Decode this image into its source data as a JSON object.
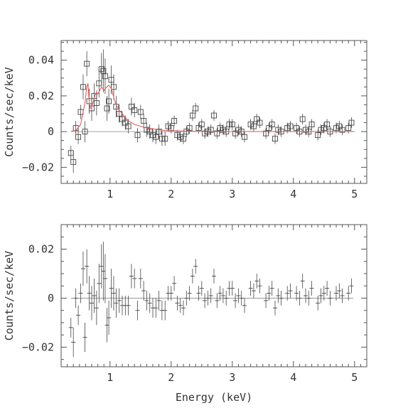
{
  "chart_data": [
    {
      "type": "scatter",
      "panel": "spectrum",
      "xlabel": "",
      "ylabel": "Counts/sec/keV",
      "xlim": [
        0.2,
        5.2
      ],
      "ylim": [
        -0.029,
        0.051
      ],
      "x_ticks": [
        1,
        2,
        3,
        4,
        5
      ],
      "y_ticks": [
        -0.02,
        0,
        0.02,
        0.04
      ],
      "y_tick_labels": [
        "−0.02",
        "0",
        "0.02",
        "0.04"
      ],
      "grid": false,
      "legend": "none",
      "colors": {
        "frame": "#555555",
        "data": "#444444",
        "model": "#e06060",
        "zero_line": "#888888"
      },
      "series": [
        {
          "marker": "open-square",
          "x": [
            0.36,
            0.4,
            0.44,
            0.48,
            0.52,
            0.56,
            0.59,
            0.62,
            0.66,
            0.7,
            0.74,
            0.78,
            0.82,
            0.86,
            0.89,
            0.92,
            0.95,
            0.98,
            1.02,
            1.06,
            1.1,
            1.15,
            1.2,
            1.25,
            1.3,
            1.35,
            1.4,
            1.45,
            1.5,
            1.55,
            1.6,
            1.65,
            1.7,
            1.75,
            1.8,
            1.85,
            1.9,
            1.95,
            2.0,
            2.05,
            2.1,
            2.15,
            2.2,
            2.25,
            2.3,
            2.35,
            2.4,
            2.45,
            2.5,
            2.55,
            2.6,
            2.65,
            2.7,
            2.75,
            2.8,
            2.85,
            2.9,
            2.95,
            3.0,
            3.05,
            3.1,
            3.15,
            3.2,
            3.3,
            3.35,
            3.4,
            3.45,
            3.55,
            3.6,
            3.65,
            3.7,
            3.75,
            3.8,
            3.9,
            3.95,
            4.05,
            4.1,
            4.15,
            4.2,
            4.25,
            4.3,
            4.4,
            4.45,
            4.5,
            4.55,
            4.6,
            4.7,
            4.75,
            4.8,
            4.9,
            4.95
          ],
          "y": [
            -0.012,
            -0.017,
            0.002,
            -0.003,
            0.011,
            0.025,
            0.0,
            0.038,
            0.017,
            0.013,
            0.02,
            0.016,
            0.027,
            0.035,
            0.034,
            0.031,
            0.013,
            0.017,
            0.029,
            0.025,
            0.014,
            0.01,
            0.007,
            0.005,
            0.003,
            0.014,
            0.012,
            -0.002,
            0.011,
            0.006,
            0.001,
            0.0,
            -0.002,
            -0.003,
            0.0,
            -0.004,
            -0.004,
            0.003,
            0.002,
            0.006,
            -0.002,
            -0.003,
            -0.004,
            0.0,
            0.002,
            0.009,
            0.013,
            0.002,
            0.004,
            -0.001,
            0.0,
            0.001,
            0.009,
            -0.001,
            0.002,
            0.001,
            0.0,
            0.004,
            0.004,
            -0.001,
            0.001,
            0.0,
            -0.003,
            0.004,
            0.003,
            0.007,
            0.005,
            -0.001,
            0.002,
            0.004,
            -0.004,
            0.001,
            0.0,
            0.002,
            0.003,
            0.002,
            0.0,
            0.007,
            0.001,
            0.0,
            0.004,
            -0.002,
            0.001,
            0.002,
            0.004,
            0.0,
            0.002,
            0.003,
            0.001,
            0.002,
            0.005
          ],
          "yerr": [
            0.004,
            0.006,
            0.004,
            0.004,
            0.004,
            0.007,
            0.006,
            0.007,
            0.007,
            0.007,
            0.007,
            0.007,
            0.008,
            0.009,
            0.012,
            0.01,
            0.007,
            0.007,
            0.008,
            0.007,
            0.006,
            0.005,
            0.004,
            0.004,
            0.004,
            0.005,
            0.004,
            0.004,
            0.004,
            0.004,
            0.004,
            0.004,
            0.004,
            0.004,
            0.004,
            0.004,
            0.004,
            0.003,
            0.003,
            0.003,
            0.003,
            0.003,
            0.003,
            0.003,
            0.003,
            0.003,
            0.003,
            0.003,
            0.003,
            0.003,
            0.003,
            0.003,
            0.003,
            0.003,
            0.003,
            0.003,
            0.003,
            0.003,
            0.003,
            0.003,
            0.003,
            0.003,
            0.003,
            0.003,
            0.003,
            0.003,
            0.003,
            0.003,
            0.003,
            0.003,
            0.003,
            0.003,
            0.003,
            0.003,
            0.003,
            0.003,
            0.003,
            0.003,
            0.003,
            0.003,
            0.003,
            0.003,
            0.003,
            0.003,
            0.003,
            0.003,
            0.003,
            0.003,
            0.003,
            0.003,
            0.003
          ]
        },
        {
          "type": "line",
          "style": "model",
          "x": [
            0.36,
            0.45,
            0.52,
            0.56,
            0.59,
            0.62,
            0.64,
            0.66,
            0.68,
            0.7,
            0.72,
            0.75,
            0.78,
            0.8,
            0.83,
            0.86,
            0.88,
            0.9,
            0.92,
            0.95,
            0.98,
            1.0,
            1.02,
            1.04,
            1.07,
            1.1,
            1.15,
            1.2,
            1.25,
            1.3,
            1.4,
            1.5,
            1.6,
            1.7,
            1.8,
            1.9,
            2.0,
            2.2,
            2.5,
            3.0,
            4.0,
            5.0
          ],
          "y": [
            0.0,
            0.001,
            0.004,
            0.011,
            0.016,
            0.025,
            0.027,
            0.016,
            0.013,
            0.014,
            0.016,
            0.02,
            0.022,
            0.021,
            0.023,
            0.025,
            0.024,
            0.023,
            0.024,
            0.025,
            0.026,
            0.025,
            0.024,
            0.022,
            0.018,
            0.015,
            0.012,
            0.01,
            0.008,
            0.006,
            0.004,
            0.003,
            0.002,
            0.0015,
            0.001,
            0.0007,
            0.0005,
            0.0003,
            0.0001,
            0.0,
            0.0,
            0.0
          ]
        }
      ]
    },
    {
      "type": "scatter",
      "panel": "residuals",
      "xlabel": "Energy (keV)",
      "ylabel": "Counts/sec/keV",
      "xlim": [
        0.2,
        5.2
      ],
      "ylim": [
        -0.028,
        0.03
      ],
      "x_ticks": [
        1,
        2,
        3,
        4,
        5
      ],
      "y_ticks": [
        -0.02,
        0,
        0.02
      ],
      "y_tick_labels": [
        "−0.02",
        "0",
        "0.02"
      ],
      "grid": false,
      "legend": "none",
      "series": [
        {
          "marker": "cross",
          "x": [
            0.36,
            0.4,
            0.44,
            0.48,
            0.52,
            0.56,
            0.59,
            0.62,
            0.66,
            0.7,
            0.74,
            0.78,
            0.82,
            0.86,
            0.89,
            0.92,
            0.95,
            0.98,
            1.02,
            1.06,
            1.1,
            1.15,
            1.2,
            1.25,
            1.3,
            1.35,
            1.4,
            1.45,
            1.5,
            1.55,
            1.6,
            1.65,
            1.7,
            1.75,
            1.8,
            1.85,
            1.9,
            1.95,
            2.0,
            2.05,
            2.1,
            2.15,
            2.2,
            2.25,
            2.3,
            2.35,
            2.4,
            2.45,
            2.5,
            2.55,
            2.6,
            2.65,
            2.7,
            2.75,
            2.8,
            2.85,
            2.9,
            2.95,
            3.0,
            3.05,
            3.1,
            3.15,
            3.2,
            3.3,
            3.35,
            3.4,
            3.45,
            3.55,
            3.6,
            3.65,
            3.7,
            3.75,
            3.8,
            3.9,
            3.95,
            4.05,
            4.1,
            4.15,
            4.2,
            4.25,
            4.3,
            4.4,
            4.45,
            4.5,
            4.55,
            4.6,
            4.7,
            4.75,
            4.8,
            4.9,
            4.95
          ],
          "y": [
            -0.012,
            -0.018,
            0.0,
            -0.007,
            0.002,
            0.012,
            -0.016,
            0.013,
            0.002,
            -0.002,
            0.001,
            -0.004,
            0.006,
            0.013,
            0.011,
            0.008,
            -0.011,
            -0.008,
            0.004,
            0.002,
            -0.002,
            -0.001,
            -0.003,
            -0.003,
            -0.003,
            0.009,
            0.008,
            -0.005,
            0.008,
            0.003,
            -0.001,
            -0.002,
            -0.004,
            -0.004,
            -0.001,
            -0.005,
            -0.005,
            0.002,
            0.002,
            0.006,
            -0.002,
            -0.003,
            -0.004,
            0.0,
            0.002,
            0.009,
            0.013,
            0.002,
            0.004,
            -0.001,
            0.0,
            0.001,
            0.009,
            -0.001,
            0.002,
            0.001,
            0.0,
            0.004,
            0.004,
            -0.001,
            0.001,
            0.0,
            -0.003,
            0.004,
            0.003,
            0.007,
            0.005,
            -0.001,
            0.002,
            0.004,
            -0.004,
            0.001,
            0.0,
            0.002,
            0.003,
            0.002,
            0.0,
            0.007,
            0.001,
            0.0,
            0.004,
            -0.002,
            0.001,
            0.002,
            0.004,
            0.0,
            0.002,
            0.003,
            0.001,
            0.002,
            0.005
          ],
          "yerr": [
            0.004,
            0.006,
            0.004,
            0.004,
            0.004,
            0.007,
            0.006,
            0.007,
            0.007,
            0.007,
            0.007,
            0.007,
            0.008,
            0.009,
            0.012,
            0.01,
            0.007,
            0.007,
            0.008,
            0.007,
            0.006,
            0.005,
            0.004,
            0.004,
            0.004,
            0.005,
            0.004,
            0.004,
            0.004,
            0.004,
            0.004,
            0.004,
            0.004,
            0.004,
            0.004,
            0.004,
            0.004,
            0.003,
            0.003,
            0.003,
            0.003,
            0.003,
            0.003,
            0.003,
            0.003,
            0.003,
            0.003,
            0.003,
            0.003,
            0.003,
            0.003,
            0.003,
            0.003,
            0.003,
            0.003,
            0.003,
            0.003,
            0.003,
            0.003,
            0.003,
            0.003,
            0.003,
            0.003,
            0.003,
            0.003,
            0.003,
            0.003,
            0.003,
            0.003,
            0.003,
            0.003,
            0.003,
            0.003,
            0.003,
            0.003,
            0.003,
            0.003,
            0.003,
            0.003,
            0.003,
            0.003,
            0.003,
            0.003,
            0.003,
            0.003,
            0.003,
            0.003,
            0.003,
            0.003,
            0.003,
            0.003
          ]
        }
      ]
    }
  ]
}
